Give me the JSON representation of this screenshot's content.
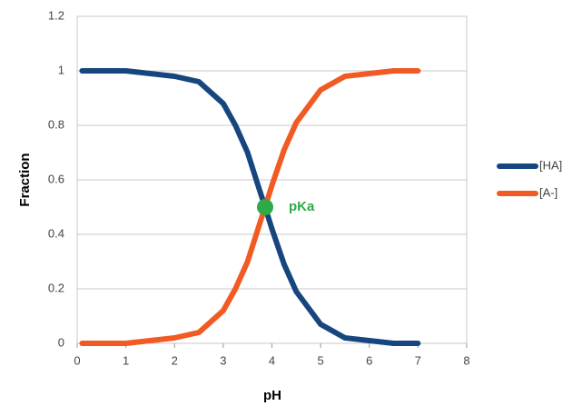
{
  "chart_data": {
    "type": "line",
    "x_label": "pH",
    "y_label": "Fraction",
    "x": [
      0.1,
      0.5,
      1,
      1.5,
      2,
      2.5,
      3,
      3.25,
      3.5,
      3.75,
      3.86,
      4,
      4.25,
      4.5,
      5,
      5.5,
      6,
      6.5,
      7
    ],
    "series": [
      {
        "name": "[HA]",
        "color": "#17467f",
        "values": [
          1,
          1,
          1,
          0.99,
          0.98,
          0.96,
          0.88,
          0.8,
          0.7,
          0.56,
          0.5,
          0.42,
          0.29,
          0.19,
          0.07,
          0.02,
          0.01,
          0,
          0
        ]
      },
      {
        "name": "[A-]",
        "color": "#f15a22",
        "values": [
          0,
          0,
          0,
          0.01,
          0.02,
          0.04,
          0.12,
          0.2,
          0.3,
          0.44,
          0.5,
          0.58,
          0.71,
          0.81,
          0.93,
          0.98,
          0.99,
          1,
          1
        ]
      }
    ],
    "annotation": {
      "text": "pKa",
      "x": 3.86,
      "y": 0.5,
      "color": "#2eaa48"
    },
    "xlim": [
      0,
      8
    ],
    "xticks": [
      0,
      1,
      2,
      3,
      4,
      5,
      6,
      7,
      8
    ],
    "ylim": [
      0,
      1.2
    ],
    "yticks": [
      0,
      0.2,
      0.4,
      0.6,
      0.8,
      1,
      1.2
    ],
    "grid": true,
    "legend": "right"
  }
}
